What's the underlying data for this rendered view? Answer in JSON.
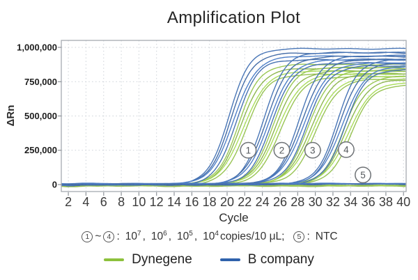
{
  "chart_data": {
    "type": "line",
    "title": "Amplification Plot",
    "xlabel": "Cycle",
    "ylabel": "ΔRn",
    "xlim": [
      1.2,
      40.3
    ],
    "ylim": [
      -50800,
      1050800
    ],
    "x_ticks": [
      2,
      4,
      6,
      8,
      10,
      12,
      14,
      16,
      18,
      20,
      22,
      24,
      26,
      28,
      30,
      32,
      34,
      36,
      38,
      40
    ],
    "y_ticks": [
      {
        "value": 0,
        "label": "0"
      },
      {
        "value": 250000,
        "label": "250,000"
      },
      {
        "value": 500000,
        "label": "500,000"
      },
      {
        "value": 750000,
        "label": "750,000"
      },
      {
        "value": 1000000,
        "label": "1,000,000"
      }
    ],
    "grid": "dotted",
    "replicates_per_bundle": 4,
    "series": [
      {
        "name": "Dynegene",
        "color": "#8DC13C",
        "groups": [
          {
            "group": 1,
            "ct": 21.7,
            "k": 0.8,
            "plateau": 875000
          },
          {
            "group": 2,
            "ct": 25.6,
            "k": 0.78,
            "plateau": 855000
          },
          {
            "group": 3,
            "ct": 29.6,
            "k": 0.76,
            "plateau": 835000
          },
          {
            "group": 4,
            "ct": 33.6,
            "k": 0.8,
            "plateau": 790000
          },
          {
            "group": 5,
            "ct": null,
            "k": null,
            "plateau": -7000
          }
        ]
      },
      {
        "name": "B company",
        "color": "#2F62AC",
        "groups": [
          {
            "group": 1,
            "ct": 20.6,
            "k": 0.82,
            "plateau": 990000
          },
          {
            "group": 2,
            "ct": 24.6,
            "k": 0.8,
            "plateau": 962000
          },
          {
            "group": 3,
            "ct": 28.6,
            "k": 0.78,
            "plateau": 940000
          },
          {
            "group": 4,
            "ct": 32.9,
            "k": 0.82,
            "plateau": 912000
          },
          {
            "group": 5,
            "ct": null,
            "k": null,
            "plateau": 6000
          }
        ]
      }
    ],
    "annotations": [
      {
        "label": "1",
        "cycle": 22.4,
        "rn": 250000
      },
      {
        "label": "2",
        "cycle": 26.2,
        "rn": 250000
      },
      {
        "label": "3",
        "cycle": 29.7,
        "rn": 250000
      },
      {
        "label": "4",
        "cycle": 33.5,
        "rn": 255000
      },
      {
        "label": "5",
        "cycle": 35.4,
        "rn": 70000
      }
    ]
  },
  "caption": {
    "groups_from": "1",
    "tilde": "~",
    "groups_to": "4",
    "colon": ":",
    "concentrations": [
      {
        "base": "10",
        "exp": "7"
      },
      {
        "base": "10",
        "exp": "6"
      },
      {
        "base": "10",
        "exp": "5"
      },
      {
        "base": "10",
        "exp": "4"
      }
    ],
    "separator": ",",
    "unit": "copies/10 μL;",
    "ntc_group": "5",
    "ntc_colon": ":",
    "ntc_label": "NTC"
  },
  "legend": {
    "items": [
      {
        "label": "Dynegene",
        "color": "#8DC13C"
      },
      {
        "label": "B company",
        "color": "#2F62AC"
      }
    ]
  },
  "style_colors": {
    "grid": "#ccd1d7",
    "border": "#a6abb1",
    "tick": "#8e9399",
    "annotation_circle": "#6e7276"
  }
}
